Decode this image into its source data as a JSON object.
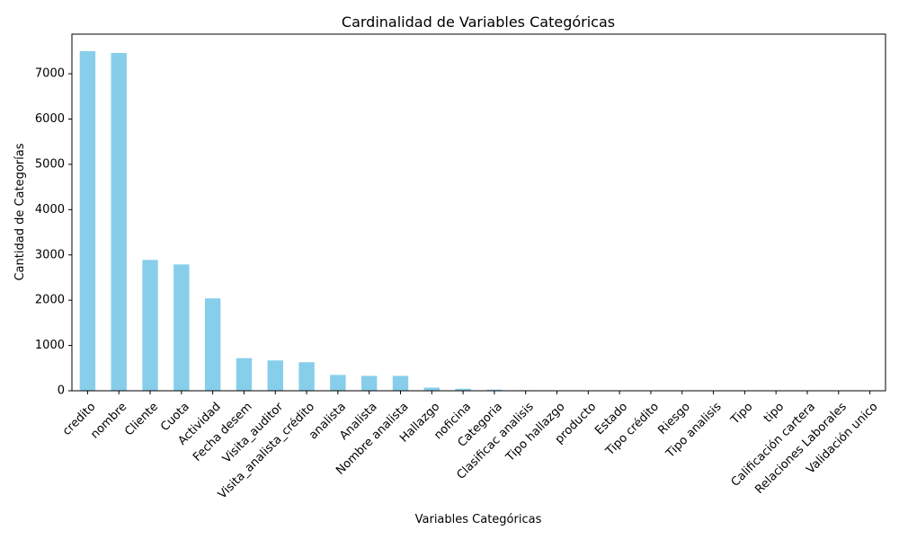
{
  "chart_data": {
    "type": "bar",
    "title": "Cardinalidad de Variables Categóricas",
    "xlabel": "Variables Categóricas",
    "ylabel": "Cantidad de Categorías",
    "ylim": [
      0,
      7875
    ],
    "yticks": [
      0,
      1000,
      2000,
      3000,
      4000,
      5000,
      6000,
      7000
    ],
    "bar_color": "#87ceeb",
    "grid": false,
    "categories": [
      "credito",
      "nombre",
      "Cliente",
      "Cuota",
      "Actividad",
      "Fecha desem",
      "Visita_auditor",
      "Visita_analista_crédito",
      "analista",
      "Analista",
      "Nombre analista",
      "Hallazgo",
      "noficina",
      "Categoria",
      "Clasificac analisis",
      "Tipo hallazgo",
      "producto",
      "Estado",
      "Tipo crédito",
      "Riesgo",
      "Tipo analisis",
      "Tipo",
      "tipo",
      "Calificación cartera",
      "Relaciones Laborales",
      "Validación unico"
    ],
    "values": [
      7500,
      7460,
      2890,
      2790,
      2040,
      720,
      670,
      630,
      350,
      330,
      330,
      70,
      45,
      25,
      12,
      10,
      8,
      5,
      4,
      3,
      3,
      2,
      2,
      2,
      2,
      1
    ]
  }
}
